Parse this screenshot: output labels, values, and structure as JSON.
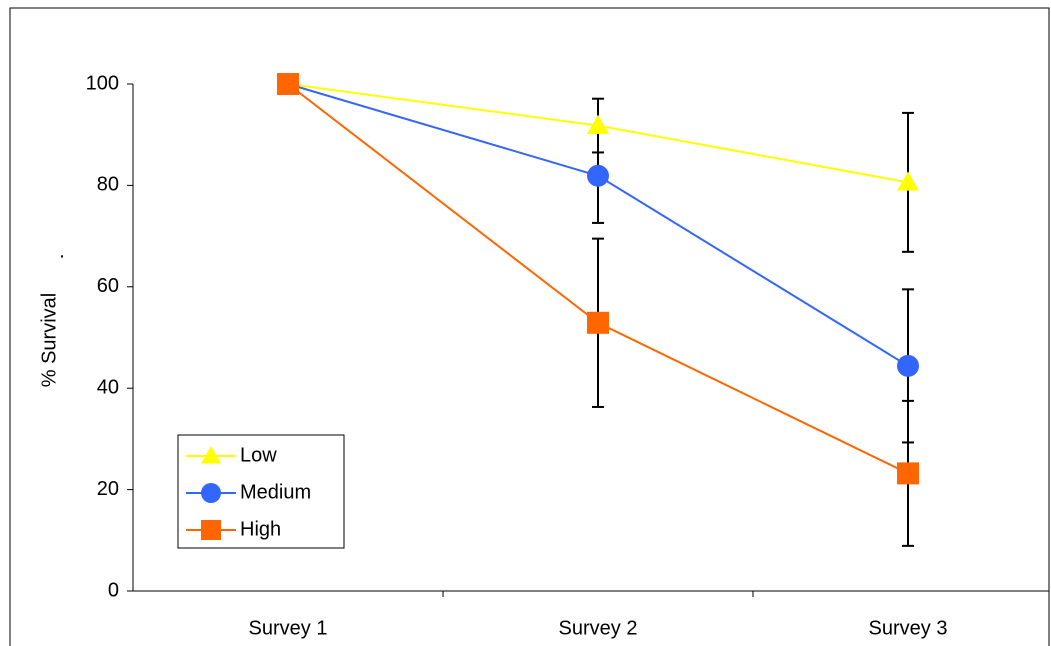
{
  "chart_data": {
    "type": "line",
    "ylabel": "% Survival",
    "annotation": ".",
    "categories": [
      "Survey 1",
      "Survey 2",
      "Survey 3"
    ],
    "series": [
      {
        "name": "Low",
        "color": "#ffff00",
        "marker": "triangle",
        "values": [
          100,
          91.8,
          80.6
        ],
        "errors": [
          null,
          5.3,
          13.7
        ]
      },
      {
        "name": "Medium",
        "color": "#3366ff",
        "marker": "circle",
        "values": [
          100,
          81.9,
          44.4
        ],
        "errors": [
          null,
          9.3,
          15.1
        ]
      },
      {
        "name": "High",
        "color": "#ff6600",
        "marker": "square",
        "values": [
          100,
          52.9,
          23.2
        ],
        "errors": [
          null,
          16.6,
          14.3
        ]
      }
    ],
    "ylim": [
      0,
      100
    ],
    "yticks": [
      0,
      20,
      40,
      60,
      80,
      100
    ],
    "legend": "lower left"
  }
}
